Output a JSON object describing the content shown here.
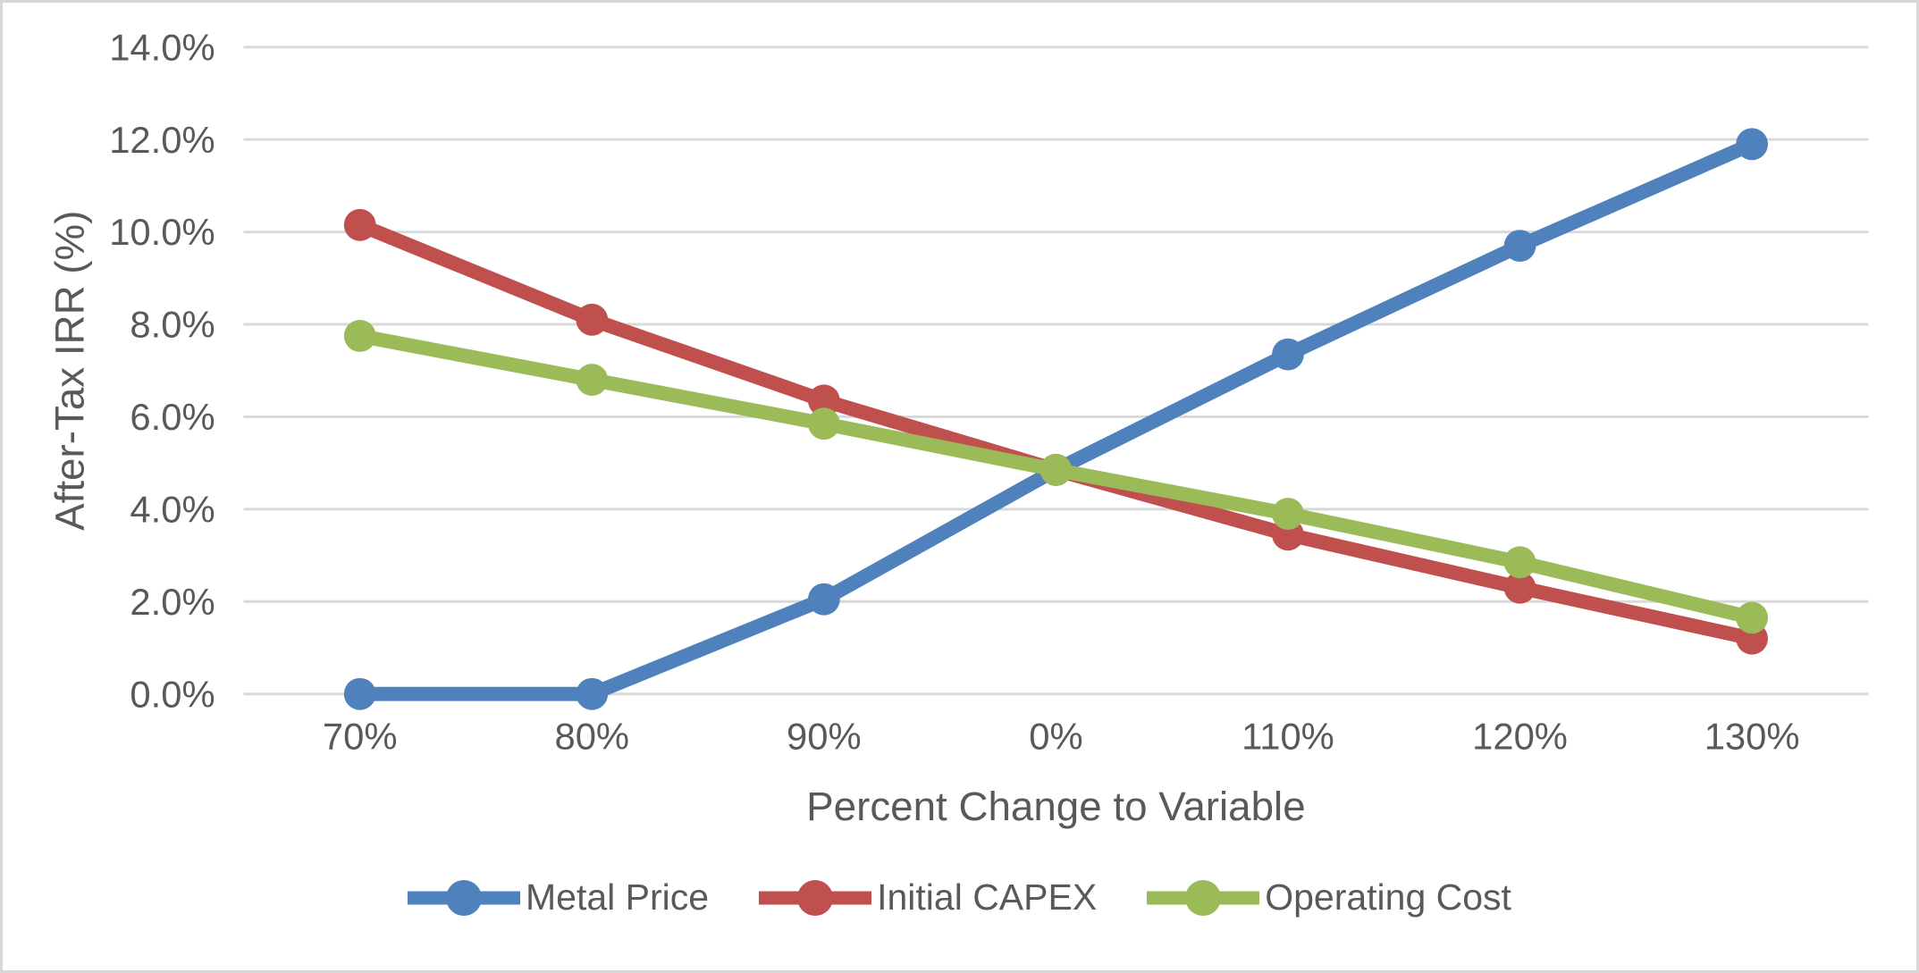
{
  "chart_data": {
    "type": "line",
    "title": "",
    "xlabel": "Percent Change to Variable",
    "ylabel": "After-Tax IRR (%)",
    "categories": [
      "70%",
      "80%",
      "90%",
      "0%",
      "110%",
      "120%",
      "130%"
    ],
    "y_tick_labels": [
      "0.0%",
      "2.0%",
      "4.0%",
      "6.0%",
      "8.0%",
      "10.0%",
      "12.0%",
      "14.0%"
    ],
    "ylim": [
      0,
      14
    ],
    "y_tick_step": 2,
    "grid": true,
    "legend_position": "bottom",
    "series": [
      {
        "name": "Metal Price",
        "color": "#4F81BD",
        "values": [
          0.0,
          0.0,
          2.05,
          4.85,
          7.35,
          9.7,
          11.9
        ]
      },
      {
        "name": "Initial CAPEX",
        "color": "#C0504D",
        "values": [
          10.15,
          8.1,
          6.35,
          4.85,
          3.45,
          2.3,
          1.2
        ]
      },
      {
        "name": "Operating Cost",
        "color": "#9BBB59",
        "values": [
          7.75,
          6.8,
          5.85,
          4.85,
          3.9,
          2.85,
          1.65
        ]
      }
    ]
  },
  "colors": {
    "grid": "#D9D9D9",
    "text": "#595959",
    "frame_border": "#D7D7D7",
    "background": "#FFFFFF"
  }
}
